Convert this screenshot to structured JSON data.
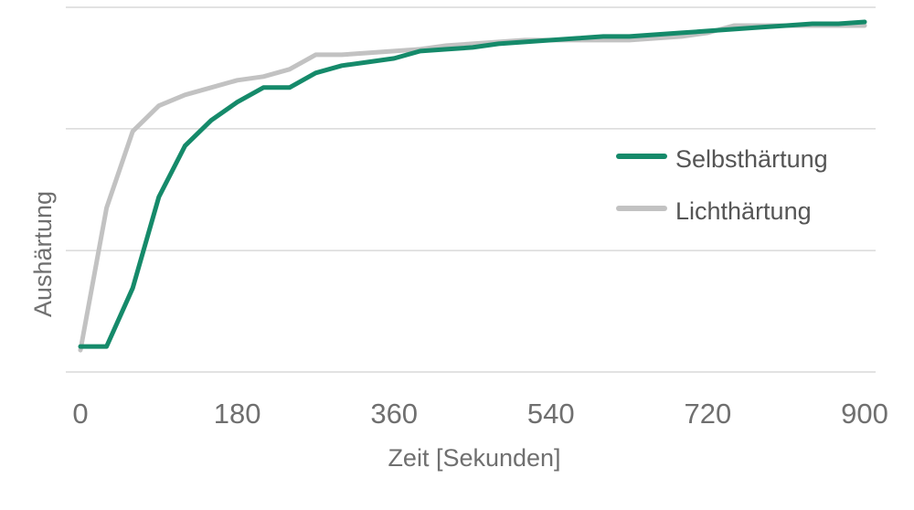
{
  "chart_data": {
    "type": "line",
    "title": "",
    "xlabel": "Zeit [Sekunden]",
    "ylabel": "Aushärtung",
    "xlim": [
      0,
      900
    ],
    "ylim": [
      0,
      100
    ],
    "xticks": [
      0,
      180,
      360,
      540,
      720,
      900
    ],
    "yticks": [
      0,
      33.3,
      66.7,
      100
    ],
    "show_y_tick_labels": false,
    "grid": "horizontal",
    "legend_position": "right",
    "series": [
      {
        "name": "Selbsthärtung",
        "color": "#158a6a",
        "x": [
          0,
          30,
          60,
          90,
          120,
          150,
          180,
          210,
          240,
          270,
          300,
          330,
          360,
          390,
          420,
          450,
          480,
          510,
          540,
          570,
          600,
          630,
          660,
          690,
          720,
          750,
          780,
          810,
          840,
          870,
          900
        ],
        "y": [
          7,
          7,
          23,
          48,
          62,
          69,
          74,
          78,
          78,
          82,
          84,
          85,
          86,
          88,
          88.5,
          89,
          90,
          90.5,
          91,
          91.5,
          92,
          92,
          92.5,
          93,
          93.5,
          94,
          94.5,
          95,
          95.5,
          95.5,
          96
        ]
      },
      {
        "name": "Lichthärtung",
        "color": "#c2c2c2",
        "x": [
          0,
          30,
          60,
          90,
          120,
          150,
          180,
          210,
          240,
          270,
          300,
          330,
          360,
          390,
          420,
          450,
          480,
          510,
          540,
          570,
          600,
          630,
          660,
          690,
          720,
          750,
          780,
          810,
          840,
          870,
          900
        ],
        "y": [
          6,
          45,
          66,
          73,
          76,
          78,
          80,
          81,
          83,
          87,
          87,
          87.5,
          88,
          88.5,
          89.5,
          90,
          90.5,
          91,
          91,
          91,
          91,
          91,
          91.5,
          92,
          93,
          95,
          95,
          95,
          95,
          95,
          95
        ]
      }
    ]
  }
}
